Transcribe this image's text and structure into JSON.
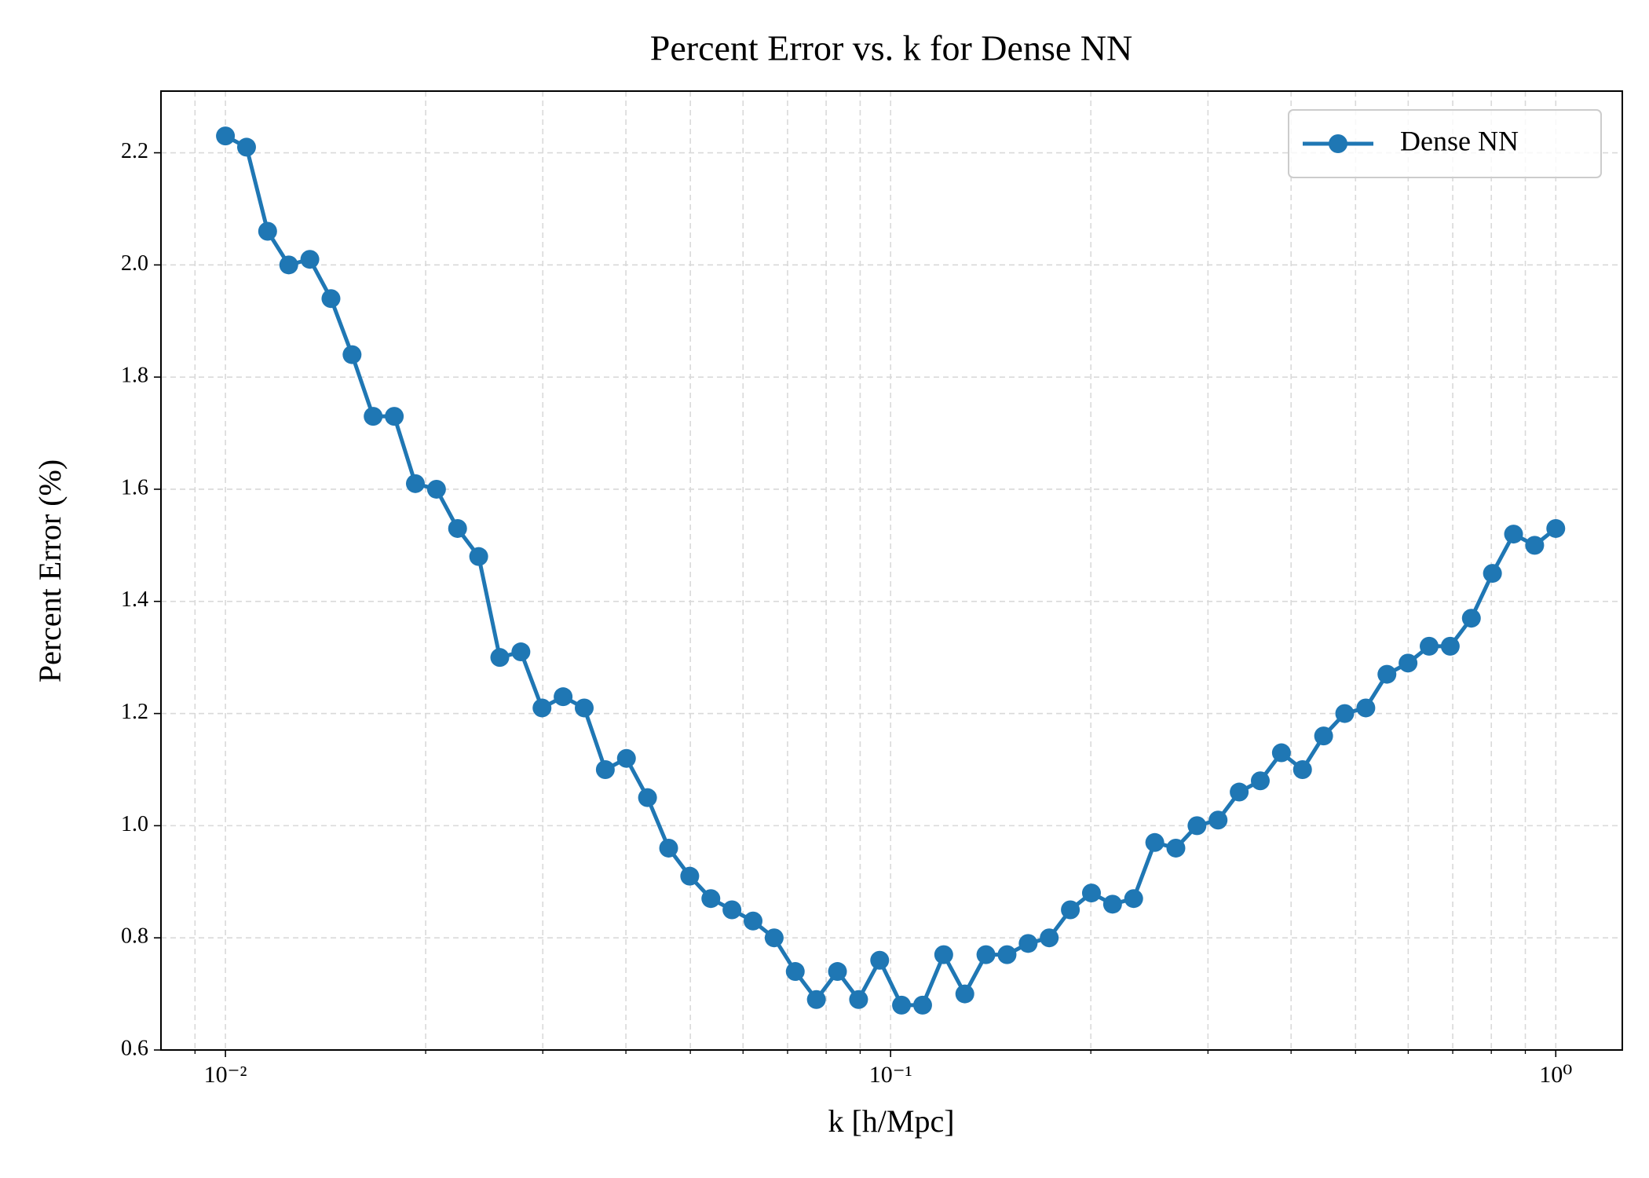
{
  "chart_data": {
    "type": "line",
    "title": "Percent Error vs. k for Dense NN",
    "xlabel": "k [h/Mpc]",
    "ylabel": "Percent Error (%)",
    "xscale": "log",
    "grid": true,
    "legend_loc": "upper right",
    "x": [
      0.01,
      0.010758,
      0.011573,
      0.01245,
      0.013394,
      0.014409,
      0.015501,
      0.016676,
      0.01794,
      0.0193,
      0.020763,
      0.022336,
      0.024029,
      0.025851,
      0.02781,
      0.029918,
      0.032185,
      0.034625,
      0.037249,
      0.040072,
      0.04311,
      0.046377,
      0.049892,
      0.053674,
      0.057742,
      0.062118,
      0.066826,
      0.071891,
      0.07734,
      0.083202,
      0.089509,
      0.096293,
      0.10385,
      0.11172,
      0.12019,
      0.1293,
      0.1391,
      0.14964,
      0.16098,
      0.17318,
      0.18631,
      0.20043,
      0.21562,
      0.23196,
      0.24955,
      0.26846,
      0.28881,
      0.3107,
      0.33425,
      0.35958,
      0.38684,
      0.41616,
      0.4477,
      0.48163,
      0.51813,
      0.55741,
      0.59966,
      0.64512,
      0.69401,
      0.74662,
      0.8032,
      0.86408,
      0.92957,
      1
    ],
    "series": [
      {
        "name": "Dense NN",
        "color": "#1f77b4",
        "values": [
          2.23,
          2.21,
          2.06,
          2.0,
          2.01,
          1.94,
          1.84,
          1.73,
          1.73,
          1.61,
          1.6,
          1.53,
          1.48,
          1.3,
          1.31,
          1.21,
          1.23,
          1.21,
          1.1,
          1.12,
          1.05,
          0.96,
          0.91,
          0.87,
          0.85,
          0.83,
          0.8,
          0.74,
          0.69,
          0.74,
          0.69,
          0.76,
          0.68,
          0.68,
          0.77,
          0.7,
          0.77,
          0.77,
          0.79,
          0.8,
          0.85,
          0.88,
          0.86,
          0.87,
          0.97,
          0.96,
          1.0,
          1.01,
          1.06,
          1.08,
          1.13,
          1.1,
          1.16,
          1.2,
          1.21,
          1.27,
          1.29,
          1.32,
          1.32,
          1.37,
          1.45,
          1.52,
          1.5,
          1.53
        ]
      }
    ],
    "xlim": [
      0.008,
      1.259
    ],
    "ylim": [
      0.6,
      2.31
    ],
    "xticks": [
      {
        "value": 0.01,
        "label": "10⁻²"
      },
      {
        "value": 0.1,
        "label": "10⁻¹"
      },
      {
        "value": 1,
        "label": "10⁰"
      }
    ],
    "xminorticks": [
      0.009,
      0.02,
      0.03,
      0.04,
      0.05,
      0.06,
      0.07,
      0.08,
      0.09,
      0.2,
      0.3,
      0.4,
      0.5,
      0.6,
      0.7,
      0.8,
      0.9
    ],
    "yticks": [
      {
        "value": 0.6,
        "label": "0.6"
      },
      {
        "value": 0.8,
        "label": "0.8"
      },
      {
        "value": 1.0,
        "label": "1.0"
      },
      {
        "value": 1.2,
        "label": "1.2"
      },
      {
        "value": 1.4,
        "label": "1.4"
      },
      {
        "value": 1.6,
        "label": "1.6"
      },
      {
        "value": 1.8,
        "label": "1.8"
      },
      {
        "value": 2.0,
        "label": "2.0"
      },
      {
        "value": 2.2,
        "label": "2.2"
      }
    ]
  }
}
